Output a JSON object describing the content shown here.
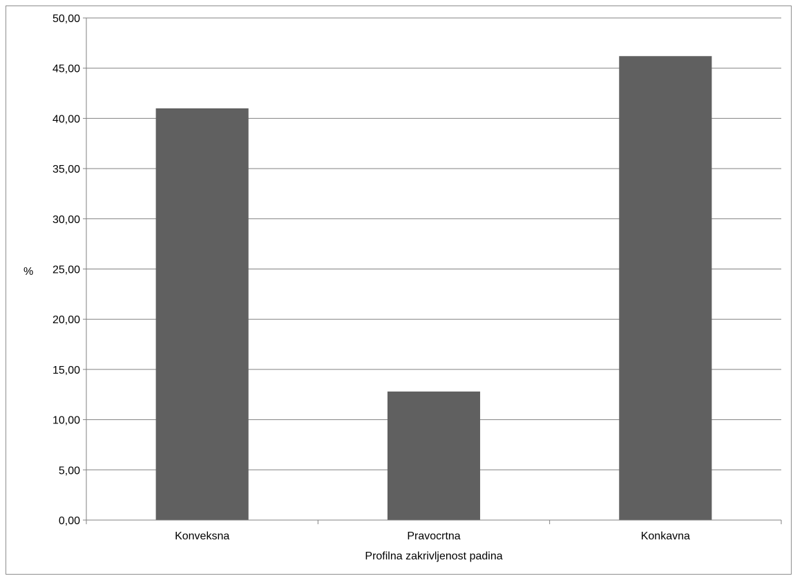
{
  "chart_data": {
    "type": "bar",
    "categories": [
      "Konveksna",
      "Pravocrtna",
      "Konkavna"
    ],
    "values": [
      41.0,
      12.8,
      46.2
    ],
    "title": "",
    "xlabel": "Profilna zakrivljenost padina",
    "ylabel": "%",
    "ylim": [
      0,
      50
    ],
    "yticks": [
      "0,00",
      "5,00",
      "10,00",
      "15,00",
      "20,00",
      "25,00",
      "30,00",
      "35,00",
      "40,00",
      "45,00",
      "50,00"
    ],
    "grid": true,
    "legend": "none",
    "colors": {
      "bar": "#606060",
      "grid": "#808080",
      "axis": "#808080"
    }
  }
}
